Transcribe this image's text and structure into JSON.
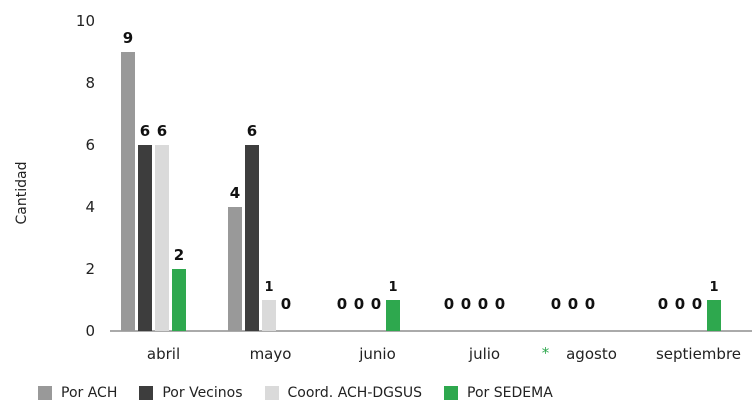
{
  "chart_data": {
    "type": "bar",
    "ylabel": "Cantidad",
    "ylim": [
      0,
      10
    ],
    "yticks": [
      0,
      2,
      4,
      6,
      8,
      10
    ],
    "categories": [
      "abril",
      "mayo",
      "junio",
      "julio",
      "agosto",
      "septiembre"
    ],
    "series": [
      {
        "name": "Por ACH",
        "color": "#999999",
        "values": [
          9,
          4,
          0,
          0,
          0,
          0
        ]
      },
      {
        "name": "Por Vecinos",
        "color": "#3d3d3d",
        "values": [
          6,
          6,
          0,
          0,
          0,
          0
        ]
      },
      {
        "name": "Coord. ACH-DGSUS",
        "color": "#dadada",
        "values": [
          6,
          1,
          0,
          0,
          0,
          0
        ]
      },
      {
        "name": "Por SEDEMA",
        "color": "#2ea84e",
        "values": [
          2,
          0,
          1,
          0,
          null,
          1
        ]
      }
    ],
    "annotations": [
      {
        "category": "agosto",
        "text": "*"
      }
    ],
    "grid": false,
    "legend": "bottom"
  }
}
